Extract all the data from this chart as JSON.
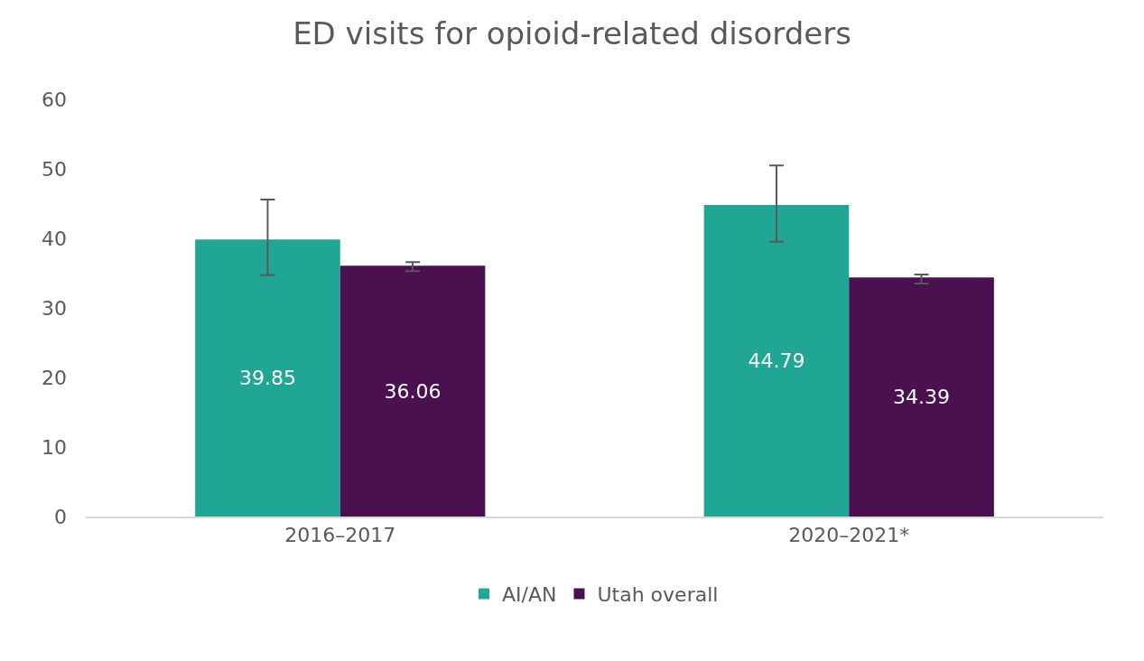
{
  "chart_data": {
    "type": "bar",
    "title": "ED visits for opioid-related disorders",
    "categories": [
      "2016–2017",
      "2020–2021*"
    ],
    "series": [
      {
        "name": "AI/AN",
        "color": "#21a594",
        "values": [
          39.85,
          44.79
        ],
        "errors": [
          [
            34.7,
            45.6
          ],
          [
            39.5,
            50.5
          ]
        ]
      },
      {
        "name": "Utah overall",
        "color": "#4a1050",
        "values": [
          36.06,
          34.39
        ],
        "errors": [
          [
            35.3,
            36.6
          ],
          [
            33.5,
            34.8
          ]
        ]
      }
    ],
    "ylim": [
      0,
      60
    ],
    "yticks": [
      0,
      10,
      20,
      30,
      40,
      50,
      60
    ],
    "grid": false,
    "legend": "bottom",
    "data_labels": true
  }
}
